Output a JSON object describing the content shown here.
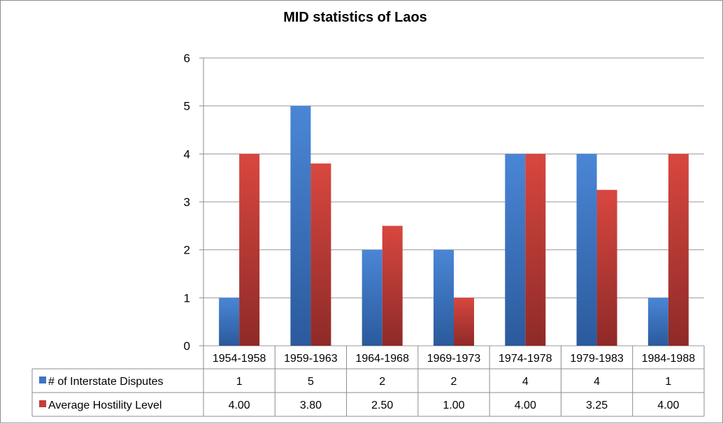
{
  "chart_data": {
    "type": "bar",
    "title": "MID statistics of Laos",
    "categories": [
      "1954-1958",
      "1959-1963",
      "1964-1968",
      "1969-1973",
      "1974-1978",
      "1979-1983",
      "1984-1988"
    ],
    "series": [
      {
        "name": "# of Interstate Disputes",
        "values": [
          1,
          5,
          2,
          2,
          4,
          4,
          1
        ],
        "labels": [
          "1",
          "5",
          "2",
          "2",
          "4",
          "4",
          "1"
        ],
        "color": "#3d74c4"
      },
      {
        "name": "Average Hostility Level",
        "values": [
          4.0,
          3.8,
          2.5,
          1.0,
          4.0,
          3.25,
          4.0
        ],
        "labels": [
          "4.00",
          "3.80",
          "2.50",
          "1.00",
          "4.00",
          "3.25",
          "4.00"
        ],
        "color": "#c43c3a"
      }
    ],
    "ylim": [
      0,
      6
    ],
    "yticks": [
      "0",
      "1",
      "2",
      "3",
      "4",
      "5",
      "6"
    ],
    "grid": true,
    "legend": "data-table-left"
  }
}
